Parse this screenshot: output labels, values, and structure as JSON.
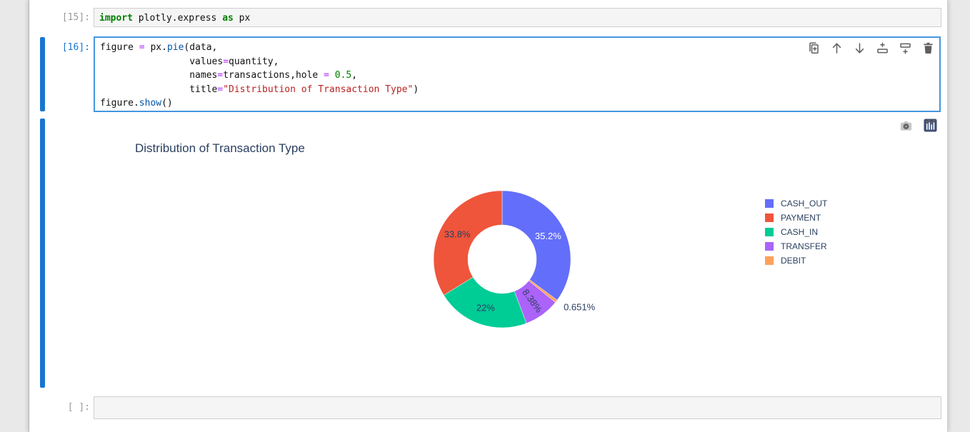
{
  "colors": {
    "page-bg": "#e9e9e9",
    "active-border": "#4596e0",
    "collapser": "#1976d2",
    "prompt-active": "#1976d2",
    "prompt-idle": "#9a9a9a",
    "syn-keyword": "#008000",
    "syn-operator": "#aa22ff",
    "syn-number": "#008000",
    "syn-string": "#ba2121",
    "syn-property": "#0055aa"
  },
  "cells": [
    {
      "prompt": "[15]:",
      "code_tokens": [
        [
          [
            "kw",
            "import"
          ],
          [
            "plain",
            " plotly.express "
          ],
          [
            "kw",
            "as"
          ],
          [
            "plain",
            " px"
          ]
        ]
      ]
    },
    {
      "prompt": "[16]:",
      "code_tokens": [
        [
          [
            "plain",
            "figure "
          ],
          [
            "op",
            "="
          ],
          [
            "plain",
            " px."
          ],
          [
            "prop",
            "pie"
          ],
          [
            "plain",
            "(data,"
          ]
        ],
        [
          [
            "plain",
            "                values"
          ],
          [
            "op",
            "="
          ],
          [
            "plain",
            "quantity,"
          ]
        ],
        [
          [
            "plain",
            "                names"
          ],
          [
            "op",
            "="
          ],
          [
            "plain",
            "transactions,hole "
          ],
          [
            "op",
            "="
          ],
          [
            "plain",
            " "
          ],
          [
            "num",
            "0.5"
          ],
          [
            "plain",
            ","
          ]
        ],
        [
          [
            "plain",
            "                title"
          ],
          [
            "op",
            "="
          ],
          [
            "str",
            "\"Distribution of Transaction Type\""
          ],
          [
            "plain",
            ")"
          ]
        ],
        [
          [
            "plain",
            "figure."
          ],
          [
            "prop",
            "show"
          ],
          [
            "plain",
            "()"
          ]
        ]
      ],
      "toolbar_icons": [
        "duplicate-cell",
        "move-cell-up",
        "move-cell-down",
        "insert-cell-above",
        "insert-cell-below",
        "delete-cell"
      ]
    }
  ],
  "empty_cell": {
    "prompt": "[ ]:"
  },
  "output": {
    "modebar_icons": [
      "camera-snapshot",
      "plotly-logo"
    ]
  },
  "chart_data": {
    "type": "pie",
    "title": "Distribution of Transaction Type",
    "hole": 0.5,
    "legend_position": "right",
    "categories": [
      "CASH_OUT",
      "PAYMENT",
      "CASH_IN",
      "TRANSFER",
      "DEBIT"
    ],
    "values": [
      35.2,
      33.8,
      22,
      8.38,
      0.651
    ],
    "labels": [
      "35.2%",
      "33.8%",
      "22%",
      "8.38%",
      "0.651%"
    ],
    "colors": [
      "#636efa",
      "#ef553b",
      "#00cc96",
      "#ab63fa",
      "#ffa15a"
    ],
    "clockwise_order": [
      0,
      4,
      3,
      2,
      1
    ],
    "label_styles": [
      {
        "placement": "inside",
        "color": "#ffffff",
        "rotate": false
      },
      {
        "placement": "inside",
        "color": "#2a3f5f",
        "rotate": false
      },
      {
        "placement": "inside",
        "color": "#2a3f5f",
        "rotate": false
      },
      {
        "placement": "inside",
        "color": "#2a3f5f",
        "rotate": true
      },
      {
        "placement": "outside",
        "color": "#2a3f5f",
        "rotate": false
      }
    ]
  }
}
